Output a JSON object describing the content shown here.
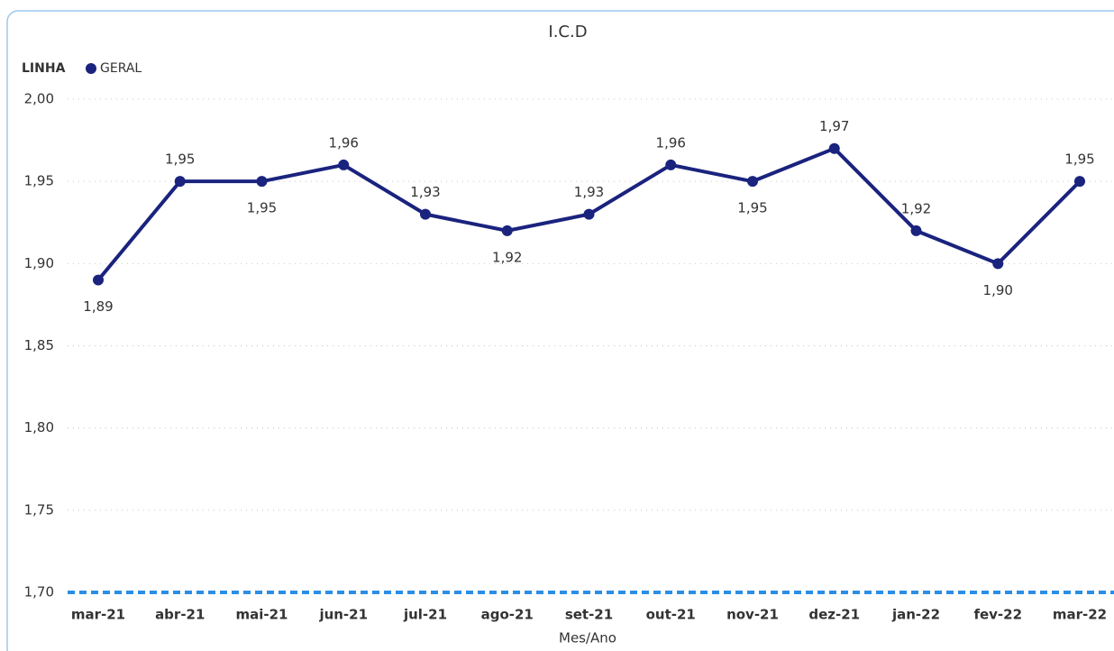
{
  "chart_data": {
    "type": "line",
    "title": "I.C.D",
    "legend_title": "LINHA",
    "x_label": "Mes/Ano",
    "categories": [
      "mar-21",
      "abr-21",
      "mai-21",
      "jun-21",
      "jul-21",
      "ago-21",
      "set-21",
      "out-21",
      "nov-21",
      "dez-21",
      "jan-22",
      "fev-22",
      "mar-22"
    ],
    "series": [
      {
        "name": "GERAL",
        "color": "#1a237e",
        "values": [
          1.89,
          1.95,
          1.95,
          1.96,
          1.93,
          1.92,
          1.93,
          1.96,
          1.95,
          1.97,
          1.92,
          1.9,
          1.95
        ],
        "value_labels": [
          "1,89",
          "1,95",
          "1,95",
          "1,96",
          "1,93",
          "1,92",
          "1,93",
          "1,96",
          "1,95",
          "1,97",
          "1,92",
          "1,90",
          "1,95"
        ]
      }
    ],
    "ylim": [
      1.7,
      2.0
    ],
    "yticks": [
      {
        "value": 1.7,
        "label": "1,70"
      },
      {
        "value": 1.75,
        "label": "1,75"
      },
      {
        "value": 1.8,
        "label": "1,80"
      },
      {
        "value": 1.85,
        "label": "1,85"
      },
      {
        "value": 1.9,
        "label": "1,90"
      },
      {
        "value": 1.95,
        "label": "1,95"
      },
      {
        "value": 2.0,
        "label": "2,00"
      }
    ],
    "grid": true
  }
}
